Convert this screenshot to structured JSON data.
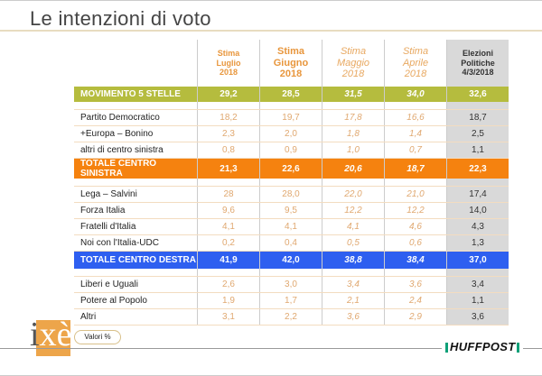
{
  "title": "Le intenzioni di voto",
  "columns": [
    {
      "l1": "Stima",
      "l2": "Luglio",
      "l3": "2018"
    },
    {
      "l1": "Stima",
      "l2": "Giugno",
      "l3": "2018"
    },
    {
      "l1": "Stima",
      "l2": "Maggio",
      "l3": "2018"
    },
    {
      "l1": "Stima",
      "l2": "Aprile",
      "l3": "2018"
    },
    {
      "l1": "Elezioni",
      "l2": "Politiche",
      "l3": "4/3/2018"
    }
  ],
  "rows": [
    {
      "label": "MOVIMENTO 5 STELLE",
      "values": [
        "29,2",
        "28,5",
        "31,5",
        "34,0",
        "32,6"
      ]
    },
    {
      "label": "Partito Democratico",
      "values": [
        "18,2",
        "19,7",
        "17,8",
        "16,6",
        "18,7"
      ]
    },
    {
      "label": "+Europa – Bonino",
      "values": [
        "2,3",
        "2,0",
        "1,8",
        "1,4",
        "2,5"
      ]
    },
    {
      "label": "altri di centro sinistra",
      "values": [
        "0,8",
        "0,9",
        "1,0",
        "0,7",
        "1,1"
      ]
    },
    {
      "label": "TOTALE CENTRO SINISTRA",
      "values": [
        "21,3",
        "22,6",
        "20,6",
        "18,7",
        "22,3"
      ]
    },
    {
      "label": "Lega – Salvini",
      "values": [
        "28",
        "28,0",
        "22,0",
        "21,0",
        "17,4"
      ]
    },
    {
      "label": "Forza Italia",
      "values": [
        "9,6",
        "9,5",
        "12,2",
        "12,2",
        "14,0"
      ]
    },
    {
      "label": "Fratelli d'Italia",
      "values": [
        "4,1",
        "4,1",
        "4,1",
        "4,6",
        "4,3"
      ]
    },
    {
      "label": "Noi con l'Italia-UDC",
      "values": [
        "0,2",
        "0,4",
        "0,5",
        "0,6",
        "1,3"
      ]
    },
    {
      "label": "TOTALE CENTRO DESTRA",
      "values": [
        "41,9",
        "42,0",
        "38,8",
        "38,4",
        "37,0"
      ]
    },
    {
      "label": "Liberi e Uguali",
      "values": [
        "2,6",
        "3,0",
        "3,4",
        "3,6",
        "3,4"
      ]
    },
    {
      "label": "Potere al Popolo",
      "values": [
        "1,9",
        "1,7",
        "2,1",
        "2,4",
        "1,1"
      ]
    },
    {
      "label": "Altri",
      "values": [
        "3,1",
        "2,2",
        "3,6",
        "2,9",
        "3,6"
      ]
    }
  ],
  "colors": {
    "m5s": "#b5bc3e",
    "centro_sinistra": "#f5820f",
    "centro_destra": "#2e5ff0",
    "estimate_text": "#e8963c",
    "election_col": "#d9d9d9"
  },
  "footnote": "Valori %",
  "logo": "ixè",
  "brand": "HUFFPOST"
}
